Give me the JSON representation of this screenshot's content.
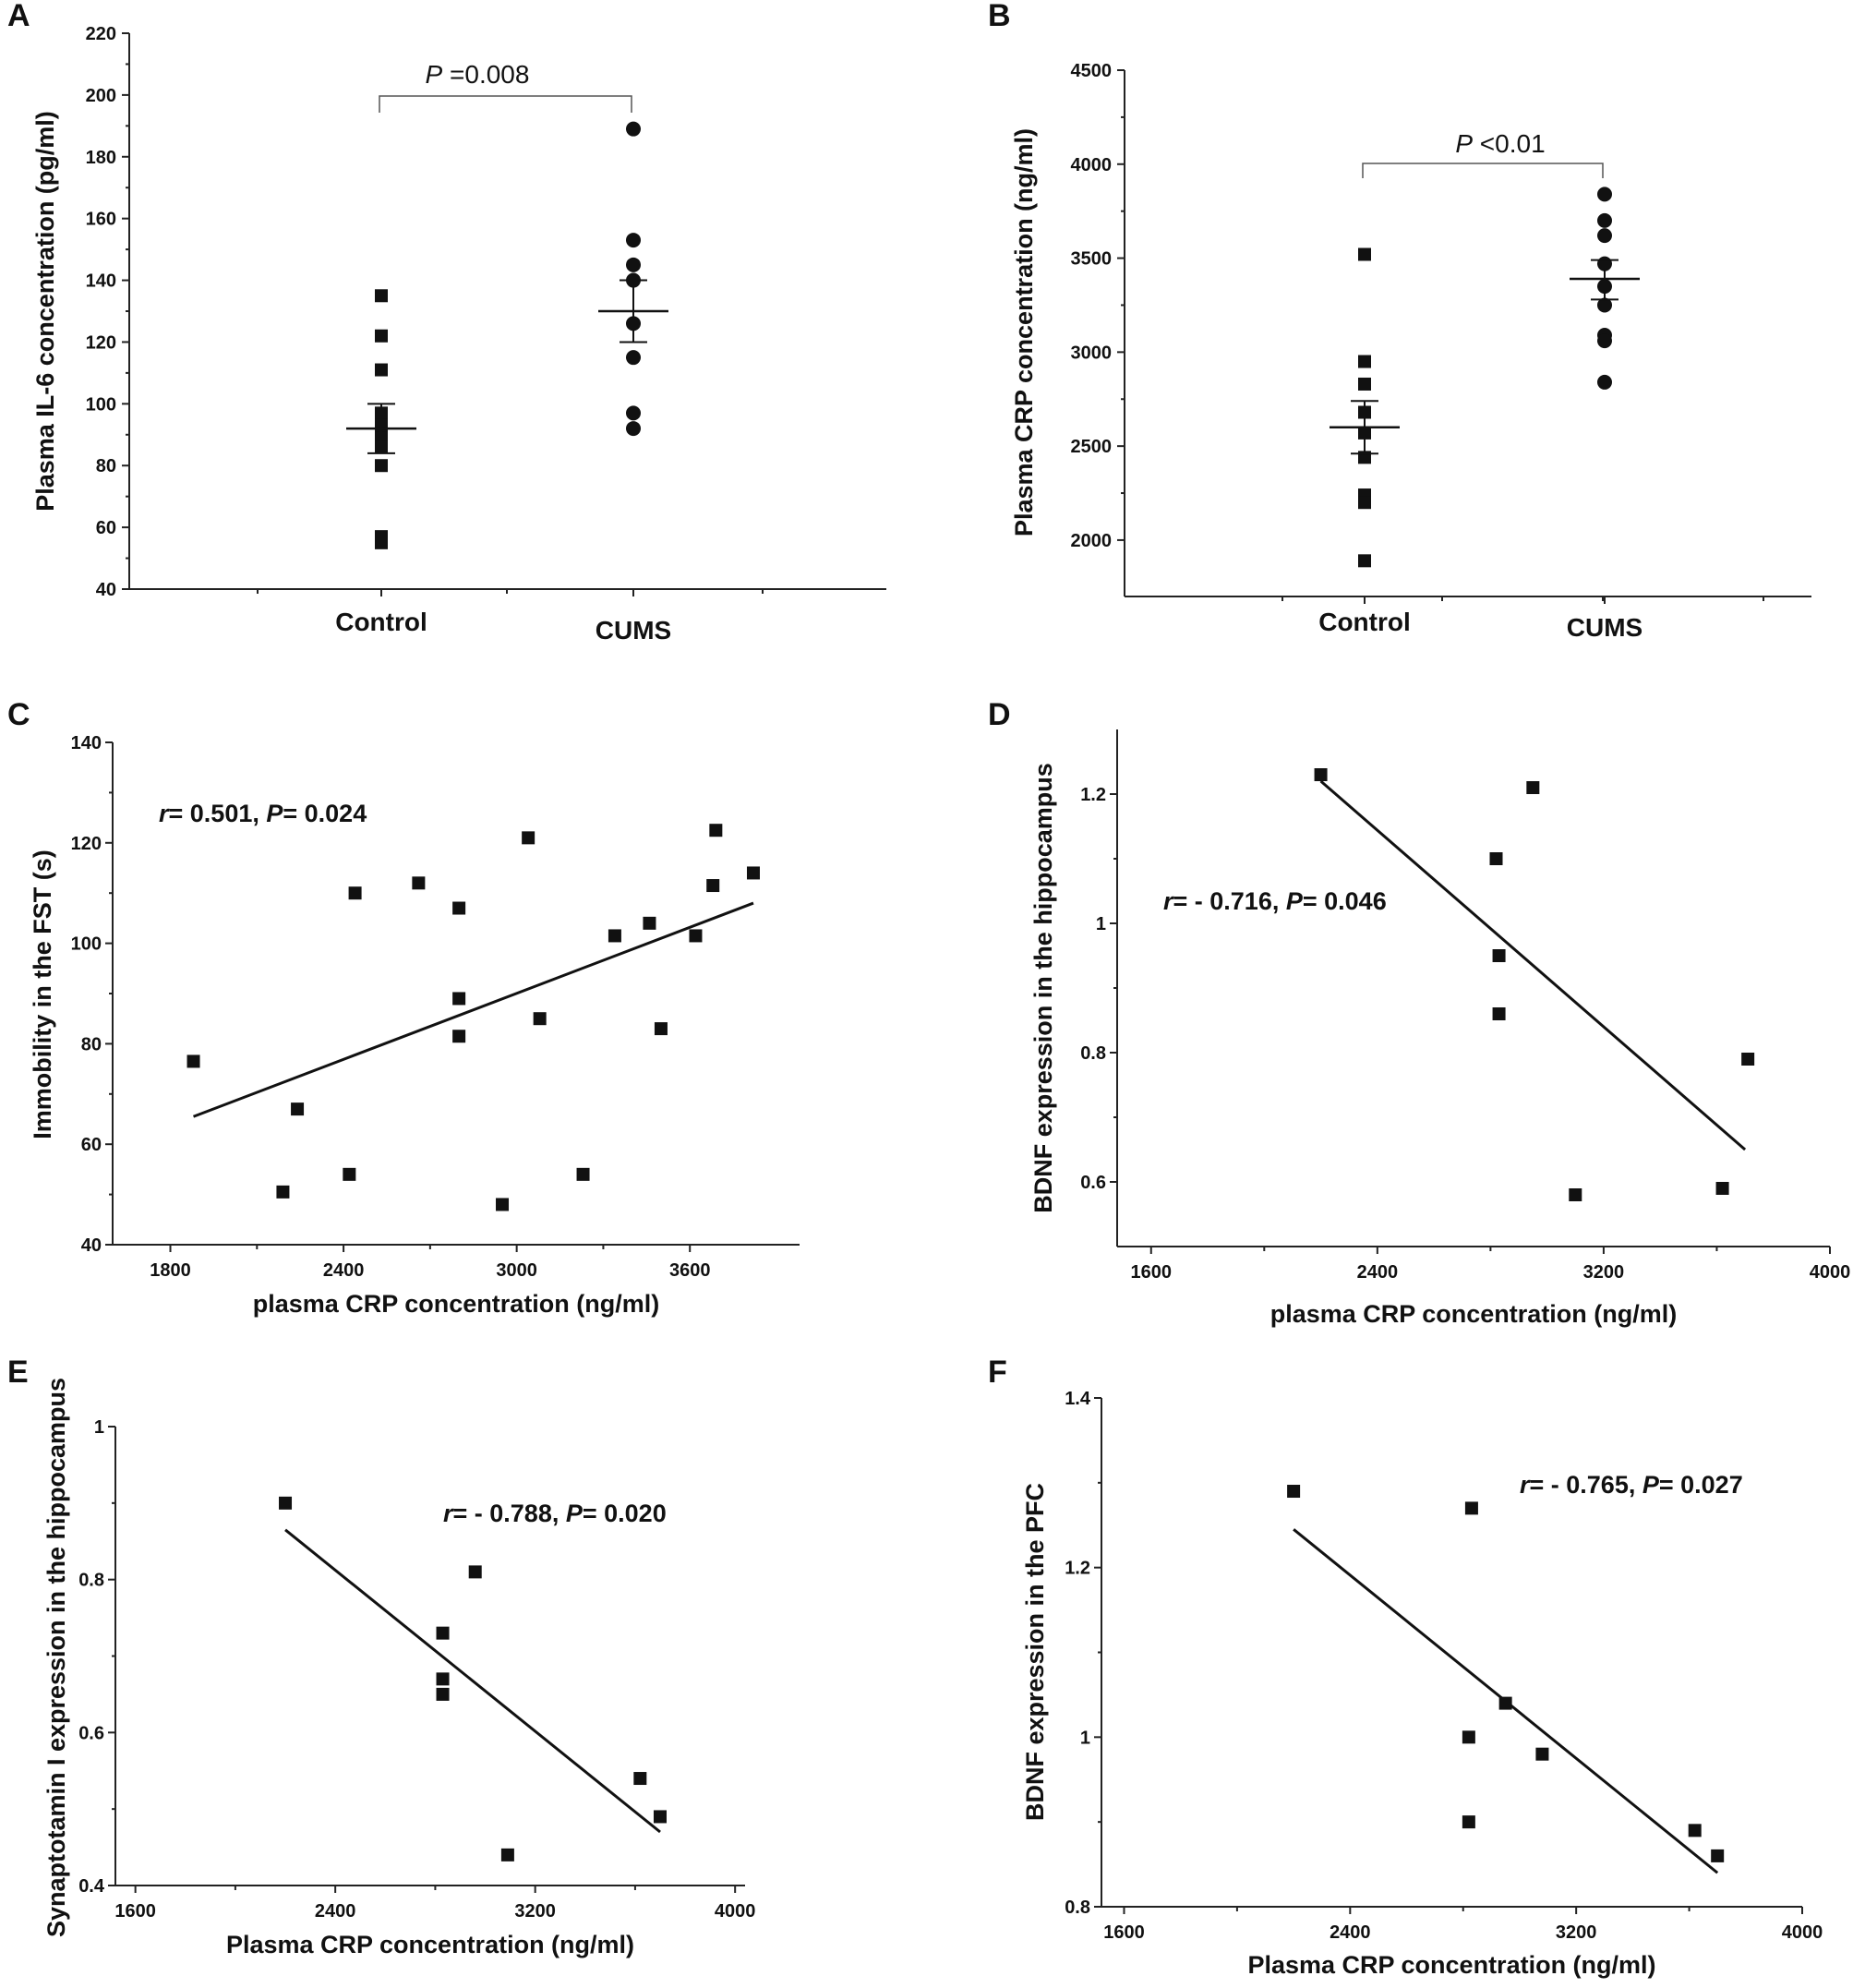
{
  "chart_data": [
    {
      "id": "A",
      "panel_label": "A",
      "type": "scatter",
      "subtype": "dot-plot",
      "ylabel": "Plasma IL-6 concentration (pg/ml)",
      "ylim": [
        40,
        220
      ],
      "yticks": [
        40,
        60,
        80,
        100,
        120,
        140,
        160,
        180,
        200,
        220
      ],
      "categories": [
        "Control",
        "CUMS"
      ],
      "groups": [
        {
          "name": "Control",
          "marker": "square",
          "values": [
            135,
            122,
            111,
            97,
            93,
            89,
            86,
            80,
            57,
            55
          ],
          "mean": 92,
          "sem_low": 84,
          "sem_high": 100
        },
        {
          "name": "CUMS",
          "marker": "circle",
          "values": [
            189,
            153,
            145,
            140,
            126,
            115,
            97,
            92
          ],
          "mean": 130,
          "sem_low": 120,
          "sem_high": 140
        }
      ],
      "annotation": {
        "italic": "P",
        "text": "=0.008"
      }
    },
    {
      "id": "B",
      "panel_label": "B",
      "type": "scatter",
      "subtype": "dot-plot",
      "ylabel": "Plasma CRP concentration (ng/ml)",
      "ylim": [
        1700,
        4500
      ],
      "yticks": [
        2000,
        2500,
        3000,
        3500,
        4000,
        4500
      ],
      "categories": [
        "Control",
        "CUMS"
      ],
      "groups": [
        {
          "name": "Control",
          "marker": "square",
          "values": [
            3520,
            2950,
            2830,
            2680,
            2570,
            2440,
            2240,
            2200,
            1890
          ],
          "mean": 2600,
          "sem_low": 2460,
          "sem_high": 2740
        },
        {
          "name": "CUMS",
          "marker": "circle",
          "values": [
            3840,
            3700,
            3620,
            3470,
            3350,
            3250,
            3090,
            3060,
            2840
          ],
          "mean": 3390,
          "sem_low": 3280,
          "sem_high": 3490
        }
      ],
      "annotation": {
        "italic": "P",
        "text": "<0.01"
      }
    },
    {
      "id": "C",
      "panel_label": "C",
      "type": "scatter",
      "xlabel": "plasma CRP concentration (ng/ml)",
      "ylabel": "Immobility in the FST (s)",
      "xlim": [
        1600,
        3980
      ],
      "ylim": [
        40,
        140
      ],
      "xticks": [
        1800,
        2400,
        3000,
        3600
      ],
      "yticks": [
        40,
        60,
        80,
        100,
        120,
        140
      ],
      "x": [
        1880,
        2190,
        2240,
        2420,
        2440,
        2660,
        2800,
        2800,
        2800,
        2950,
        3040,
        3080,
        3230,
        3340,
        3460,
        3500,
        3620,
        3680,
        3690,
        3820
      ],
      "y": [
        76.5,
        50.5,
        67,
        54,
        110,
        112,
        107,
        89,
        81.5,
        48,
        121,
        85,
        54,
        101.5,
        104,
        83,
        101.5,
        111.5,
        122.5,
        114
      ],
      "fit": {
        "x": [
          1880,
          3820
        ],
        "y": [
          65.5,
          108
        ]
      },
      "stat": {
        "r_sym": "r",
        "r_val": "= 0.501, ",
        "p_sym": "P",
        "p_val": "= 0.024"
      }
    },
    {
      "id": "D",
      "panel_label": "D",
      "type": "scatter",
      "xlabel": "plasma CRP concentration (ng/ml)",
      "ylabel": "BDNF expression in the hippocampus",
      "xlim": [
        1480,
        4000
      ],
      "ylim": [
        0.5,
        1.3
      ],
      "xticks": [
        1600,
        2400,
        3200,
        4000
      ],
      "yticks": [
        0.6,
        0.8,
        1.0,
        1.2
      ],
      "x": [
        2200,
        2820,
        2830,
        2830,
        2950,
        3100,
        3620,
        3710
      ],
      "y": [
        1.23,
        1.1,
        0.95,
        0.86,
        1.21,
        0.58,
        0.59,
        0.79
      ],
      "fit": {
        "x": [
          2200,
          3700
        ],
        "y": [
          1.22,
          0.65
        ]
      },
      "stat": {
        "r_sym": "r",
        "r_val": "= - 0.716, ",
        "p_sym": "P",
        "p_val": "= 0.046"
      }
    },
    {
      "id": "E",
      "panel_label": "E",
      "type": "scatter",
      "xlabel": "Plasma CRP concentration (ng/ml)",
      "ylabel": "Synaptotamin I expression in the hippocampus",
      "xlim": [
        1520,
        4040
      ],
      "ylim": [
        0.4,
        1.0
      ],
      "xticks": [
        1600,
        2400,
        3200,
        4000
      ],
      "yticks": [
        0.4,
        0.6,
        0.8,
        1.0
      ],
      "x": [
        2200,
        2830,
        2830,
        2830,
        2960,
        3090,
        3620,
        3700
      ],
      "y": [
        0.9,
        0.73,
        0.67,
        0.65,
        0.81,
        0.44,
        0.54,
        0.49
      ],
      "fit": {
        "x": [
          2200,
          3700
        ],
        "y": [
          0.865,
          0.47
        ]
      },
      "stat": {
        "r_sym": "r",
        "r_val": "= - 0.788, ",
        "p_sym": "P",
        "p_val": "= 0.020"
      }
    },
    {
      "id": "F",
      "panel_label": "F",
      "type": "scatter",
      "xlabel": "Plasma CRP concentration (ng/ml)",
      "ylabel": "BDNF expression in the PFC",
      "xlim": [
        1520,
        4000
      ],
      "ylim": [
        0.8,
        1.4
      ],
      "xticks": [
        1600,
        2400,
        3200,
        4000
      ],
      "yticks": [
        0.8,
        1.0,
        1.2,
        1.4
      ],
      "x": [
        2200,
        2820,
        2820,
        2830,
        2950,
        3080,
        3620,
        3700
      ],
      "y": [
        1.29,
        1.0,
        0.9,
        1.27,
        1.04,
        0.98,
        0.89,
        0.86
      ],
      "fit": {
        "x": [
          2200,
          3700
        ],
        "y": [
          1.245,
          0.84
        ]
      },
      "stat": {
        "r_sym": "r",
        "r_val": "= - 0.765, ",
        "p_sym": "P",
        "p_val": "= 0.027"
      }
    }
  ]
}
